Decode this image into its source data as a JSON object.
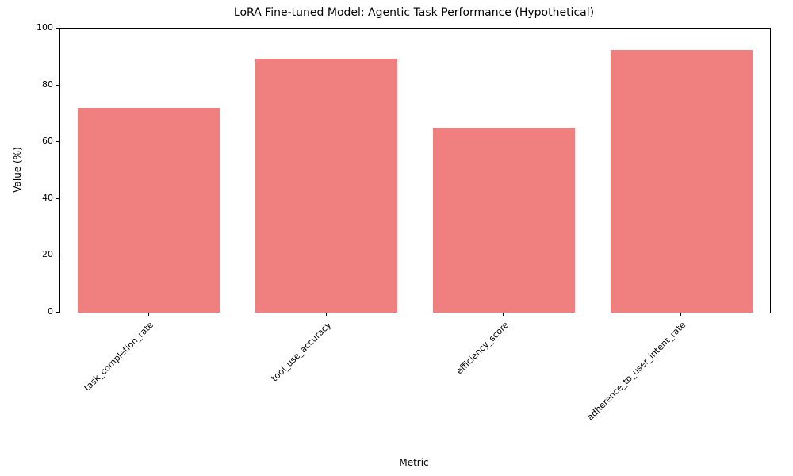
{
  "chart_data": {
    "type": "bar",
    "title": "LoRA Fine-tuned Model: Agentic Task Performance (Hypothetical)",
    "xlabel": "Metric",
    "ylabel": "Value (%)",
    "categories": [
      "task_completion_rate",
      "tool_use_accuracy",
      "efficiency_score",
      "adherence_to_user_intent_rate"
    ],
    "values": [
      72,
      89.5,
      65,
      92.5
    ],
    "ylim": [
      0,
      100
    ],
    "yticks": [
      0,
      20,
      40,
      60,
      80,
      100
    ],
    "bar_color": "#F08080",
    "bar_width_fraction": 0.8,
    "grid": false,
    "legend_position": "none"
  }
}
